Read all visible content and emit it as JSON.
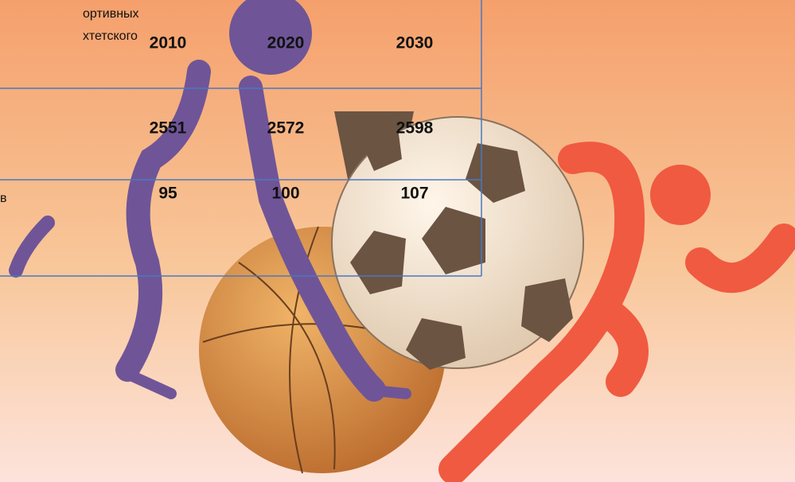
{
  "header": {
    "label_lines": [
      "ортивных",
      "хтетского"
    ],
    "years": [
      2010,
      2020,
      2030
    ]
  },
  "rows": [
    {
      "values": [
        2551,
        2572,
        2598
      ]
    },
    {
      "label": "в",
      "values": [
        95,
        100,
        107
      ]
    }
  ]
}
